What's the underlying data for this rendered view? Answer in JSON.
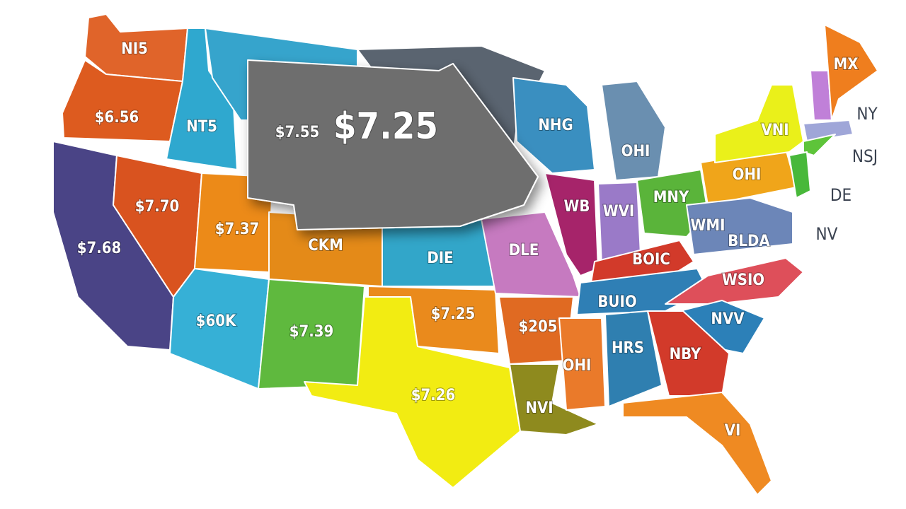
{
  "map": {
    "labels": [
      "NI5",
      "$6.56",
      "NT5",
      "$7.55",
      "$7.25",
      "$7.70",
      "$7.37",
      "$7.68",
      "CKM",
      "DIE",
      "$60K",
      "$7.39",
      "$7.25",
      "$7.26",
      "NHG",
      "OHI",
      "WB",
      "WVI",
      "MNY",
      "OHI",
      "VNI",
      "MX",
      "WMI",
      "BLDA",
      "DLE",
      "BOIC",
      "WSIO",
      "BUIO",
      "NVV",
      "$205",
      "HRS",
      "NBY",
      "OHI",
      "NVI",
      "VI"
    ],
    "outside_labels": [
      "NY",
      "NSJ",
      "DE",
      "NV"
    ]
  }
}
